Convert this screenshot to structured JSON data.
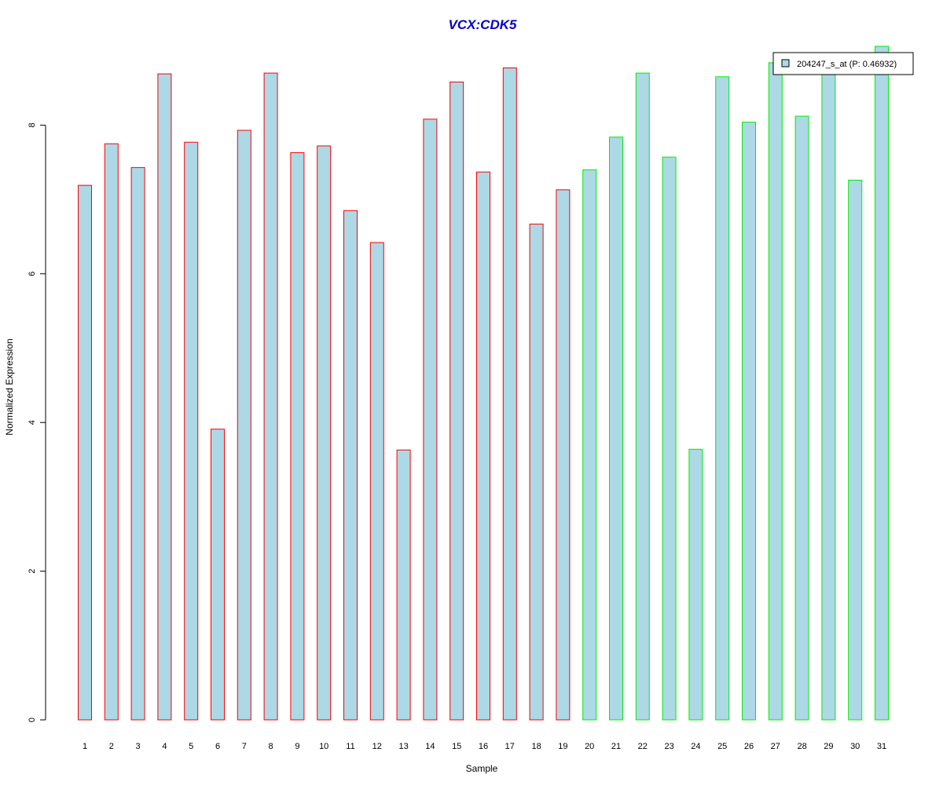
{
  "chart_data": {
    "type": "bar",
    "title": "VCX:CDK5",
    "xlabel": "Sample",
    "ylabel": "Normalized Expression",
    "ylim": [
      0,
      9.2
    ],
    "yticks": [
      0,
      2,
      4,
      6,
      8
    ],
    "grid": false,
    "legend": {
      "placement": "top-right",
      "entry": "204247_s_at (P: 0.46932)"
    },
    "categories": [
      "1",
      "2",
      "3",
      "4",
      "5",
      "6",
      "7",
      "8",
      "9",
      "10",
      "11",
      "12",
      "13",
      "14",
      "15",
      "16",
      "17",
      "18",
      "19",
      "20",
      "21",
      "22",
      "23",
      "24",
      "25",
      "26",
      "27",
      "28",
      "29",
      "30",
      "31"
    ],
    "values": [
      7.19,
      7.75,
      7.43,
      8.69,
      7.77,
      3.91,
      7.93,
      8.7,
      7.63,
      7.72,
      6.85,
      6.42,
      3.63,
      8.08,
      8.58,
      7.37,
      8.77,
      6.67,
      7.13,
      7.4,
      7.84,
      8.7,
      7.57,
      3.64,
      8.65,
      8.04,
      8.84,
      8.12,
      8.74,
      7.26,
      9.06
    ],
    "groups": [
      "a",
      "a",
      "a",
      "a",
      "a",
      "a",
      "a",
      "a",
      "a",
      "a",
      "a",
      "a",
      "a",
      "a",
      "a",
      "a",
      "a",
      "a",
      "a",
      "b",
      "b",
      "b",
      "b",
      "b",
      "b",
      "b",
      "b",
      "b",
      "b",
      "b",
      "b"
    ],
    "colors": {
      "title": "#0000cc",
      "bar_fill": "#add8e6",
      "group_a_border": "#ff0000",
      "group_b_border": "#00ee00",
      "axis": "#000000"
    }
  }
}
